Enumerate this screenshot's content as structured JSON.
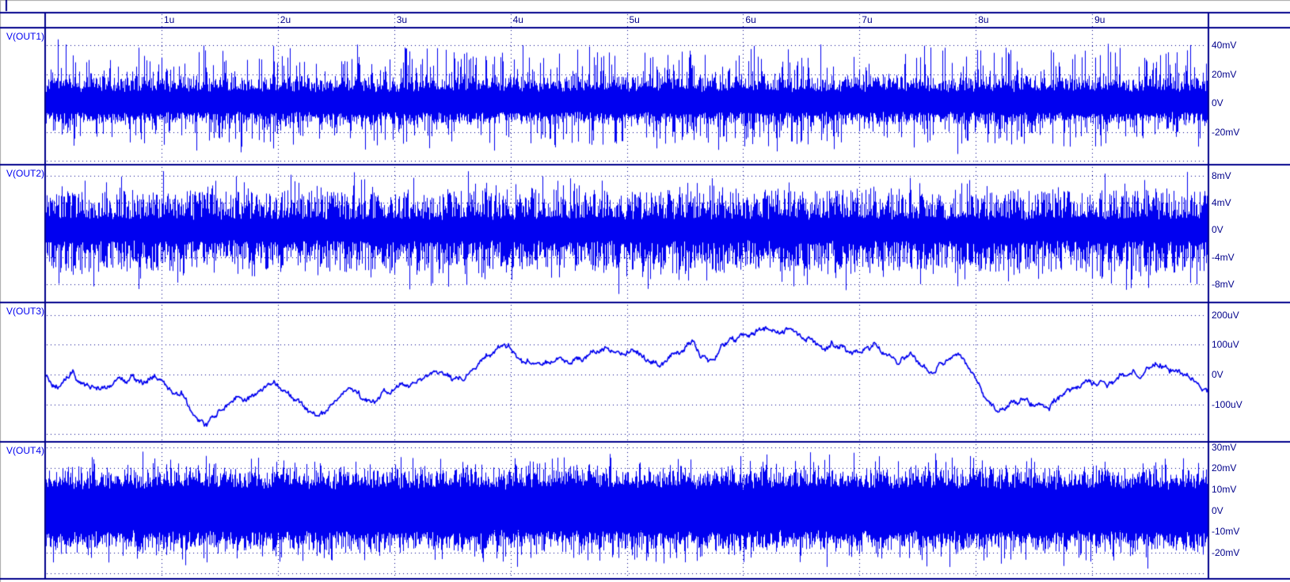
{
  "colors": {
    "background": "#ffffff",
    "trace": "#0000f0",
    "axis": "#00008b",
    "tick_text": "#00008b",
    "trace_label": "#0000f0",
    "frame_gray": "#a8a8a8"
  },
  "time_axis": {
    "unit": "s",
    "range_us": [
      0,
      10
    ],
    "ticks": [
      {
        "t": 1,
        "label": "1u"
      },
      {
        "t": 2,
        "label": "2u"
      },
      {
        "t": 3,
        "label": "3u"
      },
      {
        "t": 4,
        "label": "4u"
      },
      {
        "t": 5,
        "label": "5u"
      },
      {
        "t": 6,
        "label": "6u"
      },
      {
        "t": 7,
        "label": "7u"
      },
      {
        "t": 8,
        "label": "8u"
      },
      {
        "t": 9,
        "label": "9u"
      }
    ]
  },
  "chart_data": [
    {
      "type": "line",
      "title": "V(OUT1)",
      "y_unit": "mV",
      "ylim": [
        -42.7,
        52.1
      ],
      "x_range_us": [
        0,
        10
      ],
      "y_ticks": [
        {
          "v": 40,
          "label": "40mV"
        },
        {
          "v": 20,
          "label": "20mV"
        },
        {
          "v": 0,
          "label": "0V"
        },
        {
          "v": -20,
          "label": "-20mV"
        },
        {
          "v": -40,
          "label": null
        }
      ],
      "signal": {
        "kind": "broadband-noise",
        "description": "dense noise band approx +/-16mV with spikes to +40mV / -35mV",
        "solid": 8.2,
        "feather": 8.8,
        "fexp": 1.5,
        "spike_p": 0.42,
        "spike": 24,
        "spike_exp": 2.2,
        "up_scale": 1.08,
        "dn_scale": 0.86,
        "seed": 7
      }
    },
    {
      "type": "line",
      "title": "V(OUT2)",
      "y_unit": "mV",
      "ylim": [
        -10.7,
        9.6
      ],
      "x_range_us": [
        0,
        10
      ],
      "y_ticks": [
        {
          "v": 8,
          "label": "8mV"
        },
        {
          "v": 4,
          "label": "4mV"
        },
        {
          "v": 0,
          "label": "0V"
        },
        {
          "v": -4,
          "label": "-4mV"
        },
        {
          "v": -8,
          "label": "-8mV"
        }
      ],
      "signal": {
        "kind": "broadband-noise",
        "description": "feathery noise band approx +/-4mV with spikes to +8mV / -9mV",
        "solid": 1.7,
        "feather": 4.2,
        "fexp": 1.6,
        "spike_p": 0.38,
        "spike": 3.0,
        "spike_exp": 2.2,
        "up_scale": 1.0,
        "dn_scale": 1.05,
        "seed": 13
      }
    },
    {
      "type": "line",
      "title": "V(OUT3)",
      "y_unit": "uV",
      "ylim": [
        -225.5,
        241.4
      ],
      "x_range_us": [
        0,
        10
      ],
      "y_ticks": [
        {
          "v": 200,
          "label": "200uV"
        },
        {
          "v": 100,
          "label": "100uV"
        },
        {
          "v": 0,
          "label": "0V"
        },
        {
          "v": -100,
          "label": "-100uV"
        },
        {
          "v": -200,
          "label": null
        }
      ],
      "signal": {
        "kind": "flicker-random-walk",
        "description": "slow 1/f wander between about -160uV and +160uV",
        "jitter_fine": 3.0,
        "jitter_wander": 1.8,
        "wander_damp": 0.93,
        "seed": 5,
        "points": [
          [
            0,
            -3
          ],
          [
            0.07,
            -29
          ],
          [
            0.12,
            -40
          ],
          [
            0.17,
            -11
          ],
          [
            0.24,
            13
          ],
          [
            0.29,
            -24
          ],
          [
            0.35,
            -32
          ],
          [
            0.42,
            -40
          ],
          [
            0.49,
            -50
          ],
          [
            0.56,
            -37
          ],
          [
            0.63,
            -11
          ],
          [
            0.7,
            -29
          ],
          [
            0.75,
            -5
          ],
          [
            0.82,
            -29
          ],
          [
            0.87,
            -32
          ],
          [
            0.94,
            0
          ],
          [
            1.0,
            -19
          ],
          [
            1.06,
            -56
          ],
          [
            1.12,
            -69
          ],
          [
            1.18,
            -72
          ],
          [
            1.24,
            -111
          ],
          [
            1.29,
            -130
          ],
          [
            1.34,
            -149
          ],
          [
            1.38,
            -162
          ],
          [
            1.45,
            -151
          ],
          [
            1.51,
            -130
          ],
          [
            1.57,
            -103
          ],
          [
            1.63,
            -85
          ],
          [
            1.7,
            -69
          ],
          [
            1.77,
            -64
          ],
          [
            1.84,
            -69
          ],
          [
            1.91,
            -50
          ],
          [
            1.97,
            -45
          ],
          [
            2.04,
            -64
          ],
          [
            2.11,
            -82
          ],
          [
            2.16,
            -109
          ],
          [
            2.21,
            -122
          ],
          [
            2.27,
            -138
          ],
          [
            2.33,
            -149
          ],
          [
            2.4,
            -135
          ],
          [
            2.47,
            -103
          ],
          [
            2.52,
            -64
          ],
          [
            2.57,
            -50
          ],
          [
            2.61,
            -58
          ],
          [
            2.65,
            -72
          ],
          [
            2.71,
            -85
          ],
          [
            2.78,
            -98
          ],
          [
            2.85,
            -103
          ],
          [
            2.93,
            -72
          ],
          [
            3.02,
            -56
          ],
          [
            3.12,
            -37
          ],
          [
            3.22,
            -19
          ],
          [
            3.32,
            -3
          ],
          [
            3.42,
            8
          ],
          [
            3.51,
            -8
          ],
          [
            3.59,
            -19
          ],
          [
            3.68,
            29
          ],
          [
            3.78,
            56
          ],
          [
            3.87,
            72
          ],
          [
            3.97,
            95
          ],
          [
            4.05,
            66
          ],
          [
            4.13,
            34
          ],
          [
            4.21,
            48
          ],
          [
            4.31,
            40
          ],
          [
            4.41,
            45
          ],
          [
            4.51,
            48
          ],
          [
            4.63,
            64
          ],
          [
            4.75,
            77
          ],
          [
            4.87,
            85
          ],
          [
            4.99,
            77
          ],
          [
            5.09,
            69
          ],
          [
            5.19,
            48
          ],
          [
            5.3,
            29
          ],
          [
            5.43,
            66
          ],
          [
            5.57,
            109
          ],
          [
            5.64,
            61
          ],
          [
            5.7,
            42
          ],
          [
            5.81,
            93
          ],
          [
            5.91,
            114
          ],
          [
            6.01,
            119
          ],
          [
            6.11,
            141
          ],
          [
            6.18,
            151
          ],
          [
            6.28,
            159
          ],
          [
            6.39,
            146
          ],
          [
            6.45,
            127
          ],
          [
            6.52,
            114
          ],
          [
            6.59,
            127
          ],
          [
            6.69,
            98
          ],
          [
            6.76,
            119
          ],
          [
            6.86,
            106
          ],
          [
            6.96,
            80
          ],
          [
            7.07,
            103
          ],
          [
            7.13,
            106
          ],
          [
            7.2,
            72
          ],
          [
            7.27,
            66
          ],
          [
            7.34,
            32
          ],
          [
            7.44,
            61
          ],
          [
            7.54,
            29
          ],
          [
            7.64,
            13
          ],
          [
            7.75,
            40
          ],
          [
            7.81,
            61
          ],
          [
            7.87,
            56
          ],
          [
            7.93,
            29
          ],
          [
            8.0,
            -8
          ],
          [
            8.07,
            -50
          ],
          [
            8.13,
            -93
          ],
          [
            8.2,
            -111
          ],
          [
            8.26,
            -119
          ],
          [
            8.31,
            -98
          ],
          [
            8.39,
            -90
          ],
          [
            8.46,
            -106
          ],
          [
            8.53,
            -98
          ],
          [
            8.6,
            -106
          ],
          [
            8.68,
            -82
          ],
          [
            8.75,
            -66
          ],
          [
            8.84,
            -40
          ],
          [
            8.92,
            -19
          ],
          [
            9.01,
            -29
          ],
          [
            9.07,
            -24
          ],
          [
            9.14,
            -32
          ],
          [
            9.21,
            -11
          ],
          [
            9.28,
            -5
          ],
          [
            9.34,
            5
          ],
          [
            9.41,
            3
          ],
          [
            9.48,
            29
          ],
          [
            9.55,
            40
          ],
          [
            9.63,
            32
          ],
          [
            9.7,
            19
          ],
          [
            9.77,
            0
          ],
          [
            9.84,
            -11
          ],
          [
            9.9,
            -24
          ],
          [
            9.96,
            -45
          ],
          [
            10.0,
            -50
          ]
        ]
      }
    },
    {
      "type": "line",
      "title": "V(OUT4)",
      "y_unit": "mV",
      "ylim": [
        -32.5,
        32.5
      ],
      "x_range_us": [
        0,
        10
      ],
      "y_ticks": [
        {
          "v": 30,
          "label": "30mV"
        },
        {
          "v": 20,
          "label": "20mV"
        },
        {
          "v": 10,
          "label": "10mV"
        },
        {
          "v": 0,
          "label": "0V"
        },
        {
          "v": -10,
          "label": "-10mV"
        },
        {
          "v": -20,
          "label": "-20mV"
        },
        {
          "v": -30,
          "label": null
        }
      ],
      "signal": {
        "kind": "broadband-noise",
        "description": "dense noise band approx +/-13mV with spikes to +25mV / -30mV",
        "solid": 11,
        "feather": 7.2,
        "fexp": 1.5,
        "spike_p": 0.4,
        "spike": 9.5,
        "spike_exp": 2.2,
        "up_scale": 1.04,
        "dn_scale": 1.0,
        "seed": 21
      }
    }
  ]
}
